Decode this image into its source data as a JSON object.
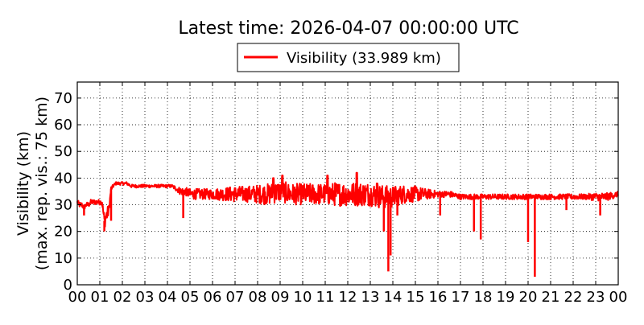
{
  "chart_data": {
    "type": "line",
    "title": "Latest time: 2026-04-07 00:00:00 UTC",
    "ylabel_line1": "Visibility (km)",
    "ylabel_line2": "(max. rep. vis.: 75 km)",
    "xlabel": "",
    "xlim": [
      0,
      24
    ],
    "ylim": [
      0,
      76
    ],
    "x_ticks": [
      0,
      1,
      2,
      3,
      4,
      5,
      6,
      7,
      8,
      9,
      10,
      11,
      12,
      13,
      14,
      15,
      16,
      17,
      18,
      19,
      20,
      21,
      22,
      23,
      24
    ],
    "x_tick_labels": [
      "00",
      "01",
      "02",
      "03",
      "04",
      "05",
      "06",
      "07",
      "08",
      "09",
      "10",
      "11",
      "12",
      "13",
      "14",
      "15",
      "16",
      "17",
      "18",
      "19",
      "20",
      "21",
      "22",
      "23",
      "00"
    ],
    "y_ticks": [
      0,
      10,
      20,
      30,
      40,
      50,
      60,
      70
    ],
    "y_tick_labels": [
      "0",
      "10",
      "20",
      "30",
      "40",
      "50",
      "60",
      "70"
    ],
    "grid": true,
    "legend_position": "top-center",
    "series": [
      {
        "name": "Visibility (33.989 km)",
        "color": "#ff0000",
        "x_hours": [
          0.0,
          0.1,
          0.2,
          0.3,
          0.4,
          0.5,
          0.6,
          0.7,
          0.8,
          0.9,
          1.0,
          1.1,
          1.2,
          1.3,
          1.4,
          1.5,
          1.6,
          1.7,
          1.8,
          1.9,
          2.0,
          2.2,
          2.4,
          2.6,
          2.8,
          3.0,
          3.2,
          3.4,
          3.6,
          3.8,
          4.0,
          4.2,
          4.4,
          4.6,
          4.8,
          5.0,
          5.5,
          6.0,
          6.5,
          7.0,
          7.5,
          8.0,
          8.5,
          9.0,
          9.5,
          10.0,
          10.5,
          11.0,
          11.5,
          12.0,
          12.5,
          13.0,
          13.5,
          14.0,
          14.5,
          15.0,
          15.5,
          16.0,
          16.5,
          17.0,
          17.5,
          18.0,
          18.5,
          19.0,
          19.5,
          20.0,
          20.5,
          21.0,
          21.5,
          22.0,
          22.5,
          23.0,
          23.5,
          24.0
        ],
        "values_km": [
          31,
          30,
          30,
          29,
          30,
          30,
          31,
          31,
          31,
          31,
          31,
          31,
          24,
          26,
          28,
          36,
          37,
          38,
          38,
          38,
          38,
          38,
          37,
          37,
          37,
          37,
          37,
          37,
          37,
          37,
          37,
          37,
          36,
          35,
          35,
          34,
          34,
          34,
          34,
          34,
          34,
          34,
          34,
          35,
          34,
          34,
          34,
          34,
          34,
          34,
          34,
          34,
          33,
          33,
          34,
          34,
          34,
          34,
          34,
          33,
          33,
          33,
          33,
          33,
          33,
          33,
          33,
          33,
          33,
          33,
          33,
          33,
          33,
          34
        ],
        "noise_amplitude_km": [
          1,
          1,
          1,
          1,
          1,
          1,
          1,
          1,
          1,
          1,
          1,
          1,
          3,
          3,
          2,
          1,
          0.6,
          0.6,
          0.6,
          0.6,
          0.6,
          0.6,
          0.6,
          0.6,
          0.6,
          0.6,
          0.6,
          0.6,
          0.6,
          0.6,
          0.6,
          0.6,
          1,
          1.5,
          1.5,
          2,
          2,
          2,
          2.5,
          3,
          3,
          3.5,
          4,
          4,
          4,
          4,
          4,
          4,
          4.5,
          4.5,
          4.5,
          4.5,
          4.5,
          4,
          3.5,
          3,
          2,
          1.2,
          1.2,
          1,
          1,
          1,
          1,
          1,
          1,
          1,
          1,
          1,
          1,
          1,
          1,
          1.5,
          1.5,
          1
        ],
        "dips": [
          {
            "x_hour": 0.3,
            "value_km": 26
          },
          {
            "x_hour": 1.2,
            "value_km": 20
          },
          {
            "x_hour": 1.5,
            "value_km": 24
          },
          {
            "x_hour": 4.7,
            "value_km": 25
          },
          {
            "x_hour": 13.6,
            "value_km": 20
          },
          {
            "x_hour": 13.8,
            "value_km": 5
          },
          {
            "x_hour": 13.9,
            "value_km": 11
          },
          {
            "x_hour": 14.2,
            "value_km": 26
          },
          {
            "x_hour": 16.1,
            "value_km": 26
          },
          {
            "x_hour": 17.6,
            "value_km": 20
          },
          {
            "x_hour": 17.9,
            "value_km": 17
          },
          {
            "x_hour": 20.0,
            "value_km": 16
          },
          {
            "x_hour": 20.3,
            "value_km": 3
          },
          {
            "x_hour": 21.7,
            "value_km": 28
          },
          {
            "x_hour": 23.2,
            "value_km": 26
          }
        ],
        "peaks": [
          {
            "x_hour": 8.7,
            "value_km": 40
          },
          {
            "x_hour": 9.1,
            "value_km": 41
          },
          {
            "x_hour": 11.1,
            "value_km": 41
          },
          {
            "x_hour": 12.4,
            "value_km": 42
          },
          {
            "x_hour": 13.3,
            "value_km": 38
          }
        ]
      }
    ]
  }
}
